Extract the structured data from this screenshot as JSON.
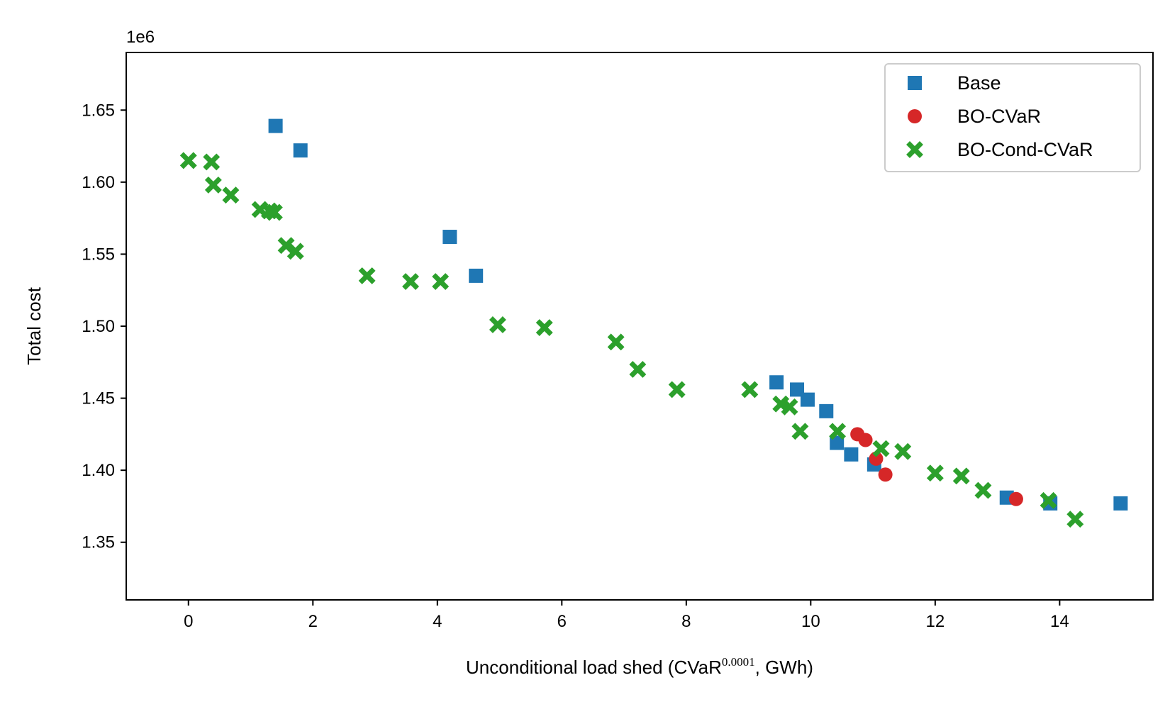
{
  "chart_data": {
    "type": "scatter",
    "title": "",
    "xlabel_main": "Unconditional load shed (CVaR",
    "xlabel_sup": "0.0001",
    "xlabel_end": ", GWh)",
    "ylabel": "Total cost",
    "y_offset_label": "1e6",
    "xlim": [
      -1,
      15.5
    ],
    "ylim": [
      1.31,
      1.69
    ],
    "xticks": [
      0,
      2,
      4,
      6,
      8,
      10,
      12,
      14
    ],
    "yticks": [
      1.35,
      1.4,
      1.45,
      1.5,
      1.55,
      1.6,
      1.65
    ],
    "ytick_labels": [
      "1.35",
      "1.40",
      "1.45",
      "1.50",
      "1.55",
      "1.60",
      "1.65"
    ],
    "grid": false,
    "legend_position": "top-right",
    "series": [
      {
        "name": "Base",
        "marker": "square",
        "color": "#1f77b4",
        "points": [
          [
            1.4,
            1.639
          ],
          [
            1.8,
            1.622
          ],
          [
            4.2,
            1.562
          ],
          [
            4.62,
            1.535
          ],
          [
            9.45,
            1.461
          ],
          [
            9.78,
            1.456
          ],
          [
            9.95,
            1.449
          ],
          [
            10.25,
            1.441
          ],
          [
            10.42,
            1.419
          ],
          [
            10.65,
            1.411
          ],
          [
            11.02,
            1.404
          ],
          [
            13.15,
            1.381
          ],
          [
            13.85,
            1.377
          ],
          [
            14.98,
            1.377
          ]
        ]
      },
      {
        "name": "BO-CVaR",
        "marker": "circle",
        "color": "#d62728",
        "points": [
          [
            10.75,
            1.425
          ],
          [
            10.88,
            1.421
          ],
          [
            11.05,
            1.408
          ],
          [
            11.2,
            1.397
          ],
          [
            13.3,
            1.38
          ]
        ]
      },
      {
        "name": "BO-Cond-CVaR",
        "marker": "x",
        "color": "#2ca02c",
        "points": [
          [
            0.0,
            1.615
          ],
          [
            0.37,
            1.614
          ],
          [
            0.4,
            1.598
          ],
          [
            0.68,
            1.591
          ],
          [
            1.15,
            1.581
          ],
          [
            1.3,
            1.58
          ],
          [
            1.38,
            1.579
          ],
          [
            1.57,
            1.556
          ],
          [
            1.72,
            1.552
          ],
          [
            2.87,
            1.535
          ],
          [
            3.57,
            1.531
          ],
          [
            4.05,
            1.531
          ],
          [
            4.97,
            1.501
          ],
          [
            5.72,
            1.499
          ],
          [
            6.87,
            1.489
          ],
          [
            7.22,
            1.47
          ],
          [
            7.85,
            1.456
          ],
          [
            9.02,
            1.456
          ],
          [
            9.52,
            1.446
          ],
          [
            9.66,
            1.444
          ],
          [
            9.83,
            1.427
          ],
          [
            10.43,
            1.427
          ],
          [
            11.13,
            1.415
          ],
          [
            11.48,
            1.413
          ],
          [
            12.0,
            1.398
          ],
          [
            12.42,
            1.396
          ],
          [
            12.77,
            1.386
          ],
          [
            13.82,
            1.379
          ],
          [
            14.25,
            1.366
          ]
        ]
      }
    ]
  }
}
